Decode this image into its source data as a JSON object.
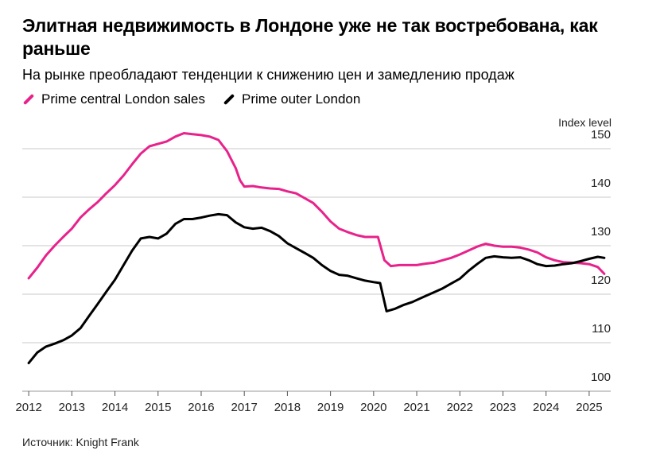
{
  "title": "Элитная недвижимость в Лондоне уже не так востребована, как раньше",
  "subtitle": "На рынке преобладают тенденции к снижению цен и замедлению продаж",
  "source": "Источник: Knight Frank",
  "legend": [
    {
      "label": "Prime central London sales",
      "color": "#e8228b"
    },
    {
      "label": "Prime outer London",
      "color": "#000000"
    }
  ],
  "chart_data": {
    "type": "line",
    "ylabel": "Index level",
    "ylim": [
      100,
      150
    ],
    "yticks": [
      100,
      110,
      120,
      130,
      140,
      150
    ],
    "xlim": [
      2011.85,
      2025.5
    ],
    "xticks": [
      2012,
      2013,
      2014,
      2015,
      2016,
      2017,
      2018,
      2019,
      2020,
      2021,
      2022,
      2023,
      2024,
      2025
    ],
    "grid": "horizontal",
    "legend_position": "top-left",
    "series": [
      {
        "name": "Prime central London sales",
        "color": "#e8228b",
        "x": [
          2012.0,
          2012.2,
          2012.4,
          2012.6,
          2012.8,
          2013.0,
          2013.2,
          2013.4,
          2013.6,
          2013.8,
          2014.0,
          2014.2,
          2014.4,
          2014.6,
          2014.8,
          2015.0,
          2015.2,
          2015.4,
          2015.6,
          2015.8,
          2016.0,
          2016.2,
          2016.4,
          2016.6,
          2016.8,
          2016.9,
          2017.0,
          2017.2,
          2017.4,
          2017.6,
          2017.8,
          2018.0,
          2018.2,
          2018.4,
          2018.6,
          2018.8,
          2019.0,
          2019.2,
          2019.4,
          2019.6,
          2019.8,
          2020.0,
          2020.1,
          2020.25,
          2020.4,
          2020.6,
          2020.8,
          2021.0,
          2021.2,
          2021.4,
          2021.6,
          2021.8,
          2022.0,
          2022.2,
          2022.4,
          2022.6,
          2022.8,
          2023.0,
          2023.2,
          2023.4,
          2023.6,
          2023.8,
          2024.0,
          2024.2,
          2024.4,
          2024.6,
          2024.8,
          2025.0,
          2025.2,
          2025.35
        ],
        "y": [
          123.3,
          125.5,
          128.0,
          130.0,
          131.8,
          133.5,
          135.8,
          137.5,
          139.0,
          140.8,
          142.5,
          144.5,
          146.8,
          149.0,
          150.5,
          151.0,
          151.5,
          152.5,
          153.2,
          153.0,
          152.8,
          152.5,
          151.8,
          149.5,
          146.0,
          143.5,
          142.2,
          142.3,
          142.0,
          141.8,
          141.7,
          141.2,
          140.8,
          139.8,
          138.8,
          137.0,
          135.0,
          133.5,
          132.8,
          132.2,
          131.8,
          131.8,
          131.8,
          127.0,
          125.8,
          126.0,
          126.0,
          126.0,
          126.3,
          126.5,
          127.0,
          127.5,
          128.2,
          129.0,
          129.8,
          130.4,
          130.0,
          129.8,
          129.8,
          129.6,
          129.2,
          128.6,
          127.6,
          127.0,
          126.6,
          126.5,
          126.4,
          126.2,
          125.6,
          124.2
        ]
      },
      {
        "name": "Prime outer London",
        "color": "#000000",
        "x": [
          2012.0,
          2012.2,
          2012.4,
          2012.6,
          2012.8,
          2013.0,
          2013.2,
          2013.4,
          2013.6,
          2013.8,
          2014.0,
          2014.2,
          2014.4,
          2014.6,
          2014.8,
          2015.0,
          2015.2,
          2015.4,
          2015.6,
          2015.8,
          2016.0,
          2016.2,
          2016.4,
          2016.6,
          2016.8,
          2017.0,
          2017.2,
          2017.4,
          2017.6,
          2017.8,
          2018.0,
          2018.2,
          2018.4,
          2018.6,
          2018.8,
          2019.0,
          2019.2,
          2019.4,
          2019.6,
          2019.8,
          2020.0,
          2020.15,
          2020.3,
          2020.5,
          2020.7,
          2020.9,
          2021.0,
          2021.2,
          2021.4,
          2021.6,
          2021.8,
          2022.0,
          2022.2,
          2022.4,
          2022.6,
          2022.8,
          2023.0,
          2023.2,
          2023.4,
          2023.6,
          2023.8,
          2024.0,
          2024.2,
          2024.4,
          2024.6,
          2024.8,
          2025.0,
          2025.2,
          2025.35
        ],
        "y": [
          105.8,
          108.0,
          109.2,
          109.8,
          110.5,
          111.5,
          113.0,
          115.5,
          118.0,
          120.5,
          123.0,
          126.0,
          129.0,
          131.5,
          131.8,
          131.5,
          132.5,
          134.5,
          135.5,
          135.5,
          135.8,
          136.2,
          136.5,
          136.3,
          134.8,
          133.8,
          133.5,
          133.7,
          133.0,
          132.0,
          130.5,
          129.5,
          128.5,
          127.5,
          126.0,
          124.8,
          124.0,
          123.8,
          123.3,
          122.8,
          122.5,
          122.3,
          116.5,
          117.0,
          117.8,
          118.4,
          118.8,
          119.6,
          120.4,
          121.2,
          122.2,
          123.2,
          124.8,
          126.2,
          127.5,
          127.8,
          127.6,
          127.5,
          127.6,
          127.0,
          126.2,
          125.8,
          125.9,
          126.2,
          126.4,
          126.8,
          127.3,
          127.7,
          127.5
        ]
      }
    ]
  }
}
